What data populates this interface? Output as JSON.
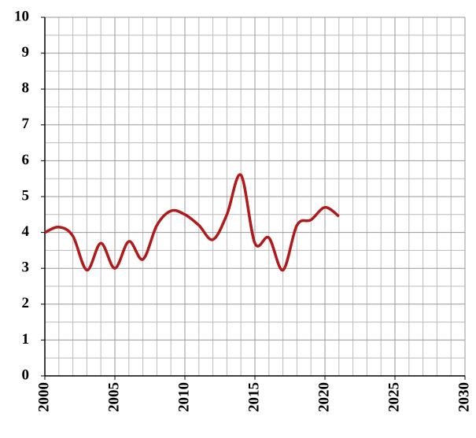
{
  "chart_data": {
    "type": "line",
    "x": [
      2000,
      2001,
      2002,
      2003,
      2004,
      2005,
      2006,
      2007,
      2008,
      2009,
      2010,
      2011,
      2012,
      2013,
      2014,
      2015,
      2016,
      2017,
      2018,
      2019,
      2020,
      2021
    ],
    "series": [
      {
        "color": "#b01a1a",
        "values": [
          4.0,
          4.15,
          3.9,
          2.95,
          3.7,
          3.0,
          3.75,
          3.25,
          4.2,
          4.6,
          4.5,
          4.2,
          3.8,
          4.5,
          5.6,
          3.7,
          3.85,
          2.95,
          4.2,
          4.35,
          4.7,
          4.45
        ]
      }
    ],
    "xlim": [
      2000,
      2030
    ],
    "xticks": [
      2000,
      2005,
      2010,
      2015,
      2020,
      2025,
      2030
    ],
    "ylim": [
      0,
      10
    ],
    "yticks": [
      0,
      1,
      2,
      3,
      4,
      5,
      6,
      7,
      8,
      9,
      10
    ],
    "grid": true,
    "smooth": true
  }
}
